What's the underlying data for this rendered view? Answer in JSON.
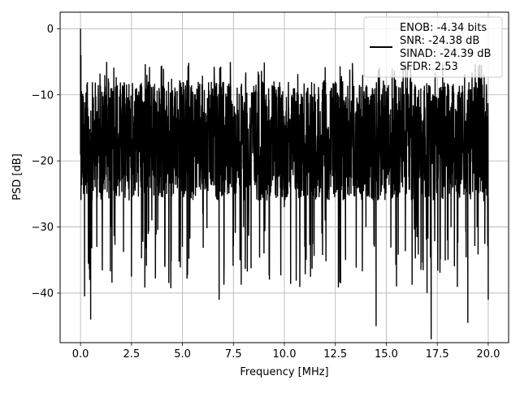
{
  "chart_data": {
    "type": "line",
    "title": "",
    "xlabel": "Frequency [MHz]",
    "ylabel": "PSD [dB]",
    "xlim": [
      -1.0,
      21.0
    ],
    "ylim": [
      -47.5,
      2.5
    ],
    "xticks": [
      0.0,
      2.5,
      5.0,
      7.5,
      10.0,
      12.5,
      15.0,
      17.5,
      20.0
    ],
    "xtick_labels": [
      "0.0",
      "2.5",
      "5.0",
      "7.5",
      "10.0",
      "12.5",
      "15.0",
      "17.5",
      "20.0"
    ],
    "yticks": [
      0,
      -10,
      -20,
      -30,
      -40
    ],
    "ytick_labels": [
      "0",
      "−10",
      "−20",
      "−30",
      "−40"
    ],
    "grid": true,
    "legend_position": "top-right",
    "series": [
      {
        "name": "ENOB: -4.34 bits\nSNR: -24.38 dB\nSINAD: -24.39 dB\nSFDR: 2.53",
        "legend_lines": [
          "ENOB: -4.34 bits",
          "SNR: -24.38 dB",
          "SINAD: -24.39 dB",
          "SFDR: 2.53"
        ],
        "color": "#000000",
        "noise_band_typical": [
          -8,
          -26
        ],
        "x": [
          0.0,
          0.02,
          0.05,
          0.1,
          0.15,
          0.2,
          0.3,
          0.45,
          0.5,
          0.6,
          0.8,
          1.0,
          1.5,
          2.0,
          2.5,
          3.0,
          3.5,
          4.2,
          5.0,
          5.5,
          6.0,
          6.8,
          7.5,
          8.0,
          8.5,
          9.0,
          9.5,
          10.0,
          10.5,
          11.0,
          11.5,
          12.0,
          12.5,
          13.0,
          13.5,
          14.0,
          14.5,
          15.0,
          15.5,
          16.0,
          16.5,
          17.0,
          17.2,
          17.5,
          18.0,
          18.5,
          19.0,
          19.5,
          20.0
        ],
        "values": [
          0.0,
          -4.0,
          -12.0,
          -18.0,
          -25.0,
          -40.5,
          -20.0,
          -38.0,
          -44.0,
          -22.0,
          -33.0,
          -15.0,
          -30.0,
          -18.0,
          -37.5,
          -14.0,
          -29.0,
          -12.0,
          -33.0,
          -10.0,
          -28.0,
          -41.0,
          -15.0,
          -30.0,
          -11.0,
          -34.0,
          -14.0,
          -27.0,
          -9.0,
          -33.0,
          -12.0,
          -29.0,
          -8.0,
          -35.0,
          -13.0,
          -30.0,
          -45.0,
          -11.0,
          -39.0,
          -9.0,
          -30.0,
          -40.0,
          -47.0,
          -12.0,
          -32.0,
          -10.0,
          -44.5,
          -14.0,
          -41.0
        ]
      }
    ]
  }
}
